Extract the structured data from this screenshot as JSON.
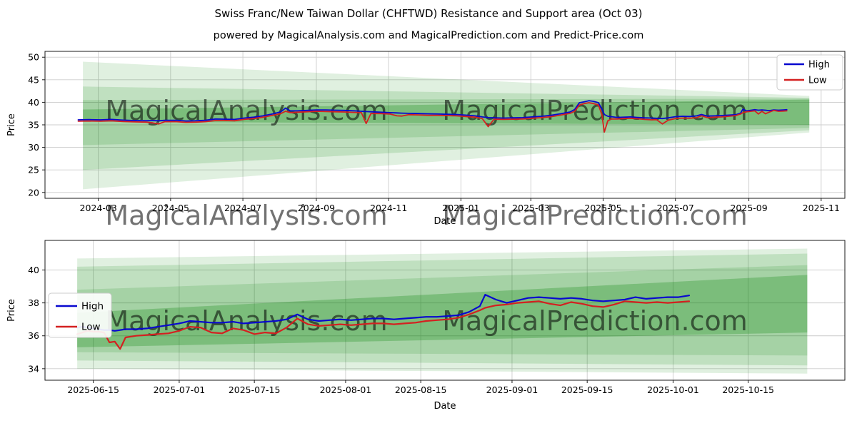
{
  "title": "Swiss Franc/New Taiwan Dollar (CHFTWD) Resistance and Support area (Oct 03)",
  "subtitle": "powered by MagicalAnalysis.com and MagicalPrediction.com and Predict-Price.com",
  "watermark": {
    "left_text": "MagicalAnalysis.com",
    "right_text": "MagicalPrediction.com"
  },
  "colors": {
    "high_line": "#0808cf",
    "low_line": "#d42020",
    "band_green": "#008000",
    "grid": "#cccccc",
    "spine": "#1a1a1a",
    "axis_text": "#000000",
    "watermark_text": "#cfc0c0",
    "legend_border": "#cccccc",
    "legend_bg": "#ffffff"
  },
  "chart_data": [
    {
      "type": "line",
      "name": "full-history",
      "xlabel": "Date",
      "ylabel": "Price",
      "grid": true,
      "xlim": [
        "2024-01-16",
        "2025-11-21"
      ],
      "ylim": [
        18.7,
        51.3
      ],
      "yticks": [
        20,
        25,
        30,
        35,
        40,
        45,
        50
      ],
      "xticks": [
        {
          "date": "2024-03-01",
          "label": "2024-03"
        },
        {
          "date": "2024-05-01",
          "label": "2024-05"
        },
        {
          "date": "2024-07-01",
          "label": "2024-07"
        },
        {
          "date": "2024-09-01",
          "label": "2024-09"
        },
        {
          "date": "2024-11-01",
          "label": "2024-11"
        },
        {
          "date": "2025-01-01",
          "label": "2025-01"
        },
        {
          "date": "2025-03-01",
          "label": "2025-03"
        },
        {
          "date": "2025-05-01",
          "label": "2025-05"
        },
        {
          "date": "2025-07-01",
          "label": "2025-07"
        },
        {
          "date": "2025-09-01",
          "label": "2025-09"
        },
        {
          "date": "2025-11-01",
          "label": "2025-11"
        }
      ],
      "legend": {
        "position": "top-right",
        "entries": [
          {
            "label": "High",
            "color_key": "high_line"
          },
          {
            "label": "Low",
            "color_key": "low_line"
          }
        ]
      },
      "bands": [
        {
          "start": "2024-02-17",
          "end": "2025-10-22",
          "top": [
            49.0,
            41.4
          ],
          "bottom": [
            20.7,
            33.3
          ],
          "alpha": 0.12
        },
        {
          "start": "2024-02-17",
          "end": "2025-10-22",
          "top": [
            43.5,
            41.0
          ],
          "bottom": [
            25.0,
            33.8
          ],
          "alpha": 0.14
        },
        {
          "start": "2024-02-17",
          "end": "2025-10-22",
          "top": [
            40.5,
            40.8
          ],
          "bottom": [
            30.5,
            34.3
          ],
          "alpha": 0.14
        },
        {
          "start": "2024-02-17",
          "end": "2025-10-22",
          "top": [
            38.4,
            40.6
          ],
          "bottom": [
            35.7,
            35.0
          ],
          "alpha": 0.25
        }
      ],
      "dates": [
        "2024-02-13",
        "2024-02-22",
        "2024-03-03",
        "2024-03-12",
        "2024-03-22",
        "2024-04-01",
        "2024-04-10",
        "2024-04-16",
        "2024-04-21",
        "2024-04-26",
        "2024-05-06",
        "2024-05-14",
        "2024-05-22",
        "2024-05-30",
        "2024-06-08",
        "2024-06-16",
        "2024-06-24",
        "2024-07-02",
        "2024-07-10",
        "2024-07-18",
        "2024-07-26",
        "2024-08-02",
        "2024-08-06",
        "2024-08-10",
        "2024-08-16",
        "2024-08-24",
        "2024-09-01",
        "2024-09-09",
        "2024-09-17",
        "2024-09-25",
        "2024-10-03",
        "2024-10-09",
        "2024-10-13",
        "2024-10-17",
        "2024-10-25",
        "2024-11-02",
        "2024-11-08",
        "2024-11-12",
        "2024-11-18",
        "2024-11-26",
        "2024-12-04",
        "2024-12-12",
        "2024-12-20",
        "2024-12-28",
        "2025-01-05",
        "2025-01-13",
        "2025-01-19",
        "2025-01-24",
        "2025-01-29",
        "2025-02-06",
        "2025-02-14",
        "2025-02-22",
        "2025-03-02",
        "2025-03-10",
        "2025-03-18",
        "2025-03-26",
        "2025-04-03",
        "2025-04-07",
        "2025-04-11",
        "2025-04-15",
        "2025-04-19",
        "2025-04-23",
        "2025-04-27",
        "2025-04-30",
        "2025-05-02",
        "2025-05-05",
        "2025-05-08",
        "2025-05-13",
        "2025-05-18",
        "2025-05-24",
        "2025-05-30",
        "2025-06-05",
        "2025-06-11",
        "2025-06-15",
        "2025-06-20",
        "2025-06-25",
        "2025-07-01",
        "2025-07-07",
        "2025-07-13",
        "2025-07-19",
        "2025-07-23",
        "2025-07-28",
        "2025-08-03",
        "2025-08-09",
        "2025-08-15",
        "2025-08-21",
        "2025-08-25",
        "2025-08-27",
        "2025-08-30",
        "2025-09-03",
        "2025-09-06",
        "2025-09-09",
        "2025-09-12",
        "2025-09-15",
        "2025-09-18",
        "2025-09-22",
        "2025-09-26",
        "2025-09-30",
        "2025-10-03"
      ],
      "series": [
        {
          "name": "High",
          "color_key": "high_line",
          "width": 1.8,
          "values": [
            36.1,
            36.15,
            36.1,
            36.2,
            36.05,
            35.95,
            35.9,
            35.95,
            35.9,
            36.0,
            36.0,
            35.85,
            35.9,
            36.0,
            36.3,
            36.25,
            36.2,
            36.5,
            36.7,
            37.0,
            37.4,
            37.9,
            38.7,
            38.1,
            38.1,
            38.2,
            38.3,
            38.3,
            38.25,
            38.2,
            38.1,
            38.0,
            37.95,
            37.9,
            37.8,
            37.7,
            37.65,
            37.6,
            37.55,
            37.5,
            37.45,
            37.4,
            37.35,
            37.3,
            37.15,
            37.0,
            36.75,
            36.6,
            36.55,
            36.5,
            36.55,
            36.6,
            36.75,
            36.9,
            37.1,
            37.45,
            37.85,
            38.4,
            39.9,
            40.1,
            40.35,
            40.2,
            39.9,
            38.5,
            37.3,
            36.9,
            36.8,
            36.65,
            36.7,
            36.75,
            36.65,
            36.55,
            36.5,
            36.45,
            36.4,
            36.55,
            36.8,
            36.9,
            36.85,
            37.0,
            37.3,
            36.95,
            37.0,
            37.05,
            37.15,
            37.25,
            37.6,
            38.5,
            38.1,
            38.25,
            38.35,
            38.25,
            38.3,
            38.25,
            38.15,
            38.3,
            38.25,
            38.3,
            38.35
          ]
        },
        {
          "name": "Low",
          "color_key": "low_line",
          "width": 1.8,
          "values": [
            35.8,
            35.85,
            35.8,
            35.9,
            35.75,
            35.65,
            35.6,
            35.45,
            35.2,
            35.7,
            35.7,
            35.55,
            35.6,
            35.7,
            35.95,
            35.95,
            35.9,
            36.2,
            36.4,
            36.7,
            37.1,
            37.5,
            38.0,
            37.7,
            37.8,
            37.9,
            38.0,
            37.95,
            37.9,
            37.85,
            37.75,
            37.7,
            35.3,
            37.5,
            37.5,
            37.4,
            37.0,
            36.95,
            37.25,
            37.2,
            37.1,
            37.1,
            37.05,
            37.0,
            36.85,
            36.7,
            36.4,
            34.6,
            36.25,
            36.2,
            36.25,
            36.3,
            36.45,
            36.6,
            36.8,
            37.15,
            37.55,
            38.0,
            39.4,
            39.7,
            39.9,
            39.7,
            39.4,
            37.2,
            33.4,
            35.9,
            36.3,
            36.3,
            36.4,
            36.45,
            36.35,
            36.2,
            36.1,
            36.15,
            35.2,
            36.05,
            36.4,
            36.5,
            36.45,
            36.6,
            37.0,
            36.6,
            36.7,
            36.75,
            36.9,
            37.05,
            37.4,
            37.7,
            37.9,
            38.0,
            38.1,
            37.4,
            38.0,
            37.45,
            37.8,
            38.2,
            38.0,
            38.05,
            38.1
          ]
        }
      ]
    },
    {
      "type": "line",
      "name": "recent-detail",
      "xlabel": "Date",
      "ylabel": "Price",
      "grid": true,
      "xlim": [
        "2025-06-06",
        "2025-11-02"
      ],
      "ylim": [
        33.3,
        41.8
      ],
      "yticks": [
        34,
        36,
        38,
        40
      ],
      "xticks": [
        {
          "date": "2025-06-15",
          "label": "2025-06-15"
        },
        {
          "date": "2025-07-01",
          "label": "2025-07-01"
        },
        {
          "date": "2025-07-15",
          "label": "2025-07-15"
        },
        {
          "date": "2025-08-01",
          "label": "2025-08-01"
        },
        {
          "date": "2025-08-15",
          "label": "2025-08-15"
        },
        {
          "date": "2025-09-01",
          "label": "2025-09-01"
        },
        {
          "date": "2025-09-15",
          "label": "2025-09-15"
        },
        {
          "date": "2025-10-01",
          "label": "2025-10-01"
        },
        {
          "date": "2025-10-15",
          "label": "2025-10-15"
        }
      ],
      "legend": {
        "position": "center-left",
        "entries": [
          {
            "label": "High",
            "color_key": "high_line"
          },
          {
            "label": "Low",
            "color_key": "low_line"
          }
        ]
      },
      "bands": [
        {
          "start": "2025-06-12",
          "end": "2025-10-26",
          "top": [
            40.7,
            41.3
          ],
          "bottom": [
            34.0,
            33.7
          ],
          "alpha": 0.12
        },
        {
          "start": "2025-06-12",
          "end": "2025-10-26",
          "top": [
            40.2,
            41.0
          ],
          "bottom": [
            34.5,
            34.2
          ],
          "alpha": 0.14
        },
        {
          "start": "2025-06-12",
          "end": "2025-10-26",
          "top": [
            38.8,
            40.3
          ],
          "bottom": [
            35.0,
            34.8
          ],
          "alpha": 0.14
        },
        {
          "start": "2025-06-12",
          "end": "2025-10-26",
          "top": [
            37.4,
            39.7
          ],
          "bottom": [
            35.3,
            36.2
          ],
          "alpha": 0.25
        }
      ],
      "dates": [
        "2025-06-12",
        "2025-06-13",
        "2025-06-14",
        "2025-06-15",
        "2025-06-16",
        "2025-06-17",
        "2025-06-18",
        "2025-06-19",
        "2025-06-20",
        "2025-06-21",
        "2025-06-23",
        "2025-06-25",
        "2025-06-27",
        "2025-06-29",
        "2025-07-01",
        "2025-07-03",
        "2025-07-05",
        "2025-07-07",
        "2025-07-09",
        "2025-07-11",
        "2025-07-13",
        "2025-07-15",
        "2025-07-17",
        "2025-07-19",
        "2025-07-21",
        "2025-07-23",
        "2025-07-25",
        "2025-07-27",
        "2025-07-29",
        "2025-07-31",
        "2025-08-02",
        "2025-08-04",
        "2025-08-06",
        "2025-08-08",
        "2025-08-10",
        "2025-08-12",
        "2025-08-14",
        "2025-08-16",
        "2025-08-18",
        "2025-08-20",
        "2025-08-22",
        "2025-08-24",
        "2025-08-26",
        "2025-08-27",
        "2025-08-29",
        "2025-08-31",
        "2025-09-02",
        "2025-09-04",
        "2025-09-06",
        "2025-09-08",
        "2025-09-10",
        "2025-09-12",
        "2025-09-14",
        "2025-09-16",
        "2025-09-18",
        "2025-09-20",
        "2025-09-22",
        "2025-09-24",
        "2025-09-26",
        "2025-09-28",
        "2025-09-30",
        "2025-10-02",
        "2025-10-04"
      ],
      "series": [
        {
          "name": "High",
          "color_key": "high_line",
          "width": 2.2,
          "values": [
            36.5,
            36.55,
            36.5,
            36.45,
            36.4,
            36.35,
            36.35,
            36.3,
            36.35,
            36.4,
            36.4,
            36.45,
            36.55,
            36.65,
            36.75,
            36.9,
            36.85,
            36.8,
            36.8,
            36.85,
            36.75,
            36.8,
            36.85,
            36.9,
            37.0,
            37.3,
            37.0,
            36.9,
            36.95,
            37.0,
            36.95,
            37.0,
            37.05,
            37.05,
            37.0,
            37.05,
            37.1,
            37.15,
            37.15,
            37.2,
            37.25,
            37.45,
            37.8,
            38.5,
            38.2,
            38.0,
            38.15,
            38.3,
            38.35,
            38.3,
            38.25,
            38.3,
            38.25,
            38.15,
            38.1,
            38.15,
            38.2,
            38.35,
            38.25,
            38.3,
            38.35,
            38.35,
            38.45
          ]
        },
        {
          "name": "Low",
          "color_key": "low_line",
          "width": 2.2,
          "values": [
            36.1,
            36.2,
            36.3,
            36.25,
            36.25,
            36.2,
            35.6,
            35.65,
            35.2,
            35.9,
            36.0,
            36.05,
            36.1,
            36.15,
            36.3,
            36.55,
            36.5,
            36.2,
            36.15,
            36.45,
            36.35,
            36.1,
            36.2,
            36.15,
            36.5,
            37.05,
            36.7,
            36.6,
            36.65,
            36.7,
            36.65,
            36.7,
            36.75,
            36.75,
            36.7,
            36.75,
            36.8,
            36.9,
            36.95,
            37.0,
            37.1,
            37.3,
            37.55,
            37.7,
            37.85,
            37.9,
            38.0,
            38.05,
            38.1,
            37.95,
            37.85,
            38.05,
            37.95,
            37.8,
            37.75,
            37.9,
            38.1,
            38.05,
            38.0,
            38.05,
            38.0,
            38.05,
            38.1
          ]
        }
      ]
    }
  ]
}
